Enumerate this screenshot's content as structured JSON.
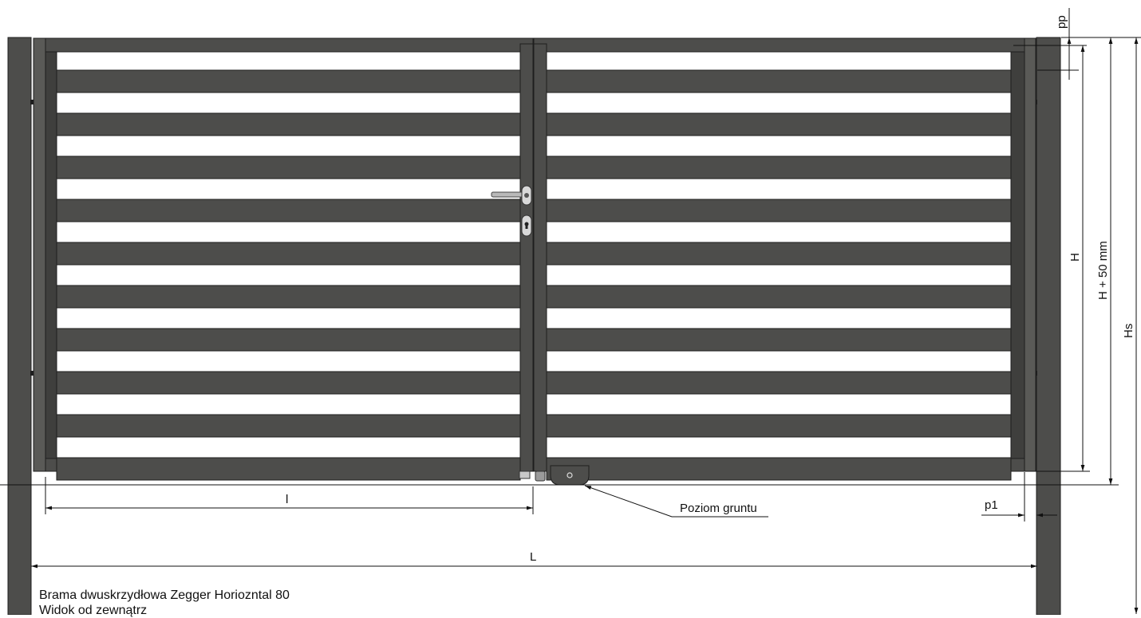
{
  "drawing": {
    "dimension_labels": {
      "pp": "pp",
      "H": "H",
      "H_plus": "H + 50 mm",
      "Hs": "Hs",
      "l": "l",
      "L": "L",
      "p1": "p1"
    },
    "ground_label": "Poziom gruntu",
    "caption": {
      "title": "Brama dwuskrzydłowa Zegger Horiozntal 80",
      "view": "Widok od zewnątrz"
    },
    "colors": {
      "profile": "#4d4d4b",
      "profile_dark": "#3a3a38",
      "outline": "#1e1e1e",
      "line": "#111111",
      "background": "#ffffff"
    },
    "slats_per_leaf": 10
  }
}
